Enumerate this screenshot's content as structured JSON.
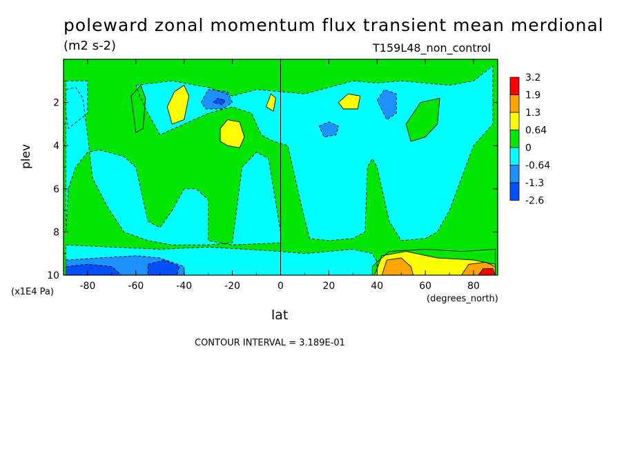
{
  "chart_data": {
    "type": "heatmap",
    "title": "poleward zonal momentum flux transient mean merdional",
    "units": "(m2 s-2)",
    "dataset": "T159L48_non_control",
    "xlabel": "lat",
    "x_units": "(degrees_north)",
    "ylabel": "plev",
    "y_units": "(x1E4 Pa)",
    "xlim": [
      -90,
      90
    ],
    "ylim": [
      10,
      0
    ],
    "x_ticks": [
      -80,
      -60,
      -40,
      -20,
      0,
      20,
      40,
      60,
      80
    ],
    "y_ticks": [
      2,
      4,
      6,
      8,
      10
    ],
    "contour_interval_label": "CONTOUR INTERVAL = 3.189E-01",
    "legend": {
      "placement": "right",
      "levels": [
        "3.2",
        "1.9",
        "1.3",
        "0.64",
        "0",
        "-0.64",
        "-1.3",
        "-2.6"
      ],
      "colors": [
        "#ff0000",
        "#ffa500",
        "#ffff00",
        "#00e600",
        "#00ffff",
        "#1e90ff",
        "#0050ff"
      ]
    },
    "background_color": "#00e600",
    "regions": [
      {
        "name": "left-cyan-column",
        "color": "#00ffff",
        "points": [
          [
            -89,
            1
          ],
          [
            -80,
            1
          ],
          [
            -80,
            2.5
          ],
          [
            -88,
            3.2
          ],
          [
            -89,
            2.5
          ]
        ]
      },
      {
        "name": "cyan-upper-left",
        "color": "#00ffff",
        "points": [
          [
            -89,
            1.4
          ],
          [
            -85,
            1.3
          ],
          [
            -82,
            1.8
          ],
          [
            -80,
            3.5
          ],
          [
            -78,
            5.5
          ],
          [
            -72,
            6.8
          ],
          [
            -65,
            8
          ],
          [
            -55,
            8.4
          ],
          [
            -45,
            8.6
          ],
          [
            -30,
            8.6
          ],
          [
            -20,
            8.5
          ],
          [
            -16,
            5
          ],
          [
            -10,
            4.3
          ],
          [
            -5,
            4.6
          ],
          [
            0,
            8
          ],
          [
            0,
            8.5
          ],
          [
            -20,
            8.6
          ],
          [
            -30,
            8.4
          ],
          [
            -30,
            6.5
          ],
          [
            -35,
            6
          ],
          [
            -40,
            6
          ],
          [
            -45,
            7
          ],
          [
            -50,
            7.8
          ],
          [
            -55,
            7.5
          ],
          [
            -58,
            6
          ],
          [
            -60,
            5
          ],
          [
            -65,
            4.5
          ],
          [
            -75,
            4.2
          ],
          [
            -80,
            4.3
          ],
          [
            -85,
            5
          ],
          [
            -88,
            6
          ],
          [
            -89,
            8
          ]
        ]
      },
      {
        "name": "cyan-top-strip",
        "color": "#00ffff",
        "points": [
          [
            -60,
            1.2
          ],
          [
            -45,
            1
          ],
          [
            -30,
            1.3
          ],
          [
            -20,
            1.7
          ],
          [
            -10,
            1.4
          ],
          [
            0,
            1.5
          ],
          [
            10,
            1.6
          ],
          [
            20,
            1.3
          ],
          [
            30,
            1
          ],
          [
            40,
            1.1
          ],
          [
            50,
            1
          ],
          [
            70,
            1.2
          ],
          [
            80,
            1
          ],
          [
            88,
            0.3
          ],
          [
            88,
            3
          ],
          [
            80,
            4
          ],
          [
            75,
            5.5
          ],
          [
            70,
            7
          ],
          [
            65,
            8
          ],
          [
            60,
            8.3
          ],
          [
            50,
            8.4
          ],
          [
            45,
            7.5
          ],
          [
            40,
            5
          ],
          [
            38,
            4.6
          ],
          [
            36,
            5
          ],
          [
            35,
            8
          ],
          [
            30,
            8.3
          ],
          [
            20,
            8.4
          ],
          [
            12,
            8.3
          ],
          [
            8,
            6.5
          ],
          [
            5,
            5
          ],
          [
            3,
            4
          ],
          [
            -3,
            3.8
          ],
          [
            -8,
            3.5
          ],
          [
            -12,
            2.5
          ],
          [
            -20,
            2.2
          ],
          [
            -30,
            2.5
          ],
          [
            -40,
            3
          ],
          [
            -50,
            3.5
          ],
          [
            -55,
            2.5
          ],
          [
            -58,
            1.8
          ]
        ]
      },
      {
        "name": "cyan-bottom-band",
        "color": "#00ffff",
        "points": [
          [
            -89,
            8.6
          ],
          [
            -70,
            8.7
          ],
          [
            -50,
            8.8
          ],
          [
            -30,
            8.7
          ],
          [
            -15,
            8.8
          ],
          [
            0,
            8.9
          ],
          [
            10,
            9
          ],
          [
            20,
            8.9
          ],
          [
            30,
            8.8
          ],
          [
            38,
            9
          ],
          [
            40,
            9.4
          ],
          [
            40,
            10
          ],
          [
            -89,
            10
          ]
        ]
      },
      {
        "name": "blue-bottom-left",
        "color": "#1e90ff",
        "points": [
          [
            -89,
            9.3
          ],
          [
            -75,
            9.2
          ],
          [
            -60,
            9.1
          ],
          [
            -50,
            9.2
          ],
          [
            -40,
            9.6
          ],
          [
            -40,
            10
          ],
          [
            -89,
            10
          ]
        ]
      },
      {
        "name": "darkblue-bottom-left-1",
        "color": "#0050ff",
        "points": [
          [
            -89,
            9.6
          ],
          [
            -80,
            9.5
          ],
          [
            -70,
            9.6
          ],
          [
            -66,
            10
          ],
          [
            -89,
            10
          ]
        ]
      },
      {
        "name": "darkblue-bottom-left-2",
        "color": "#0050ff",
        "points": [
          [
            -55,
            9.5
          ],
          [
            -48,
            9.3
          ],
          [
            -42,
            9.6
          ],
          [
            -43,
            10
          ],
          [
            -55,
            10
          ]
        ]
      },
      {
        "name": "green-bottom-right",
        "color": "#00e600",
        "points": [
          [
            38,
            9.6
          ],
          [
            45,
            8.9
          ],
          [
            60,
            8.8
          ],
          [
            75,
            8.9
          ],
          [
            89,
            8.8
          ],
          [
            89,
            10
          ],
          [
            38,
            10
          ]
        ]
      },
      {
        "name": "yellow-bottom-right",
        "color": "#ffff00",
        "points": [
          [
            39,
            10
          ],
          [
            42,
            9.1
          ],
          [
            52,
            8.9
          ],
          [
            65,
            9.2
          ],
          [
            80,
            9.3
          ],
          [
            89,
            9.5
          ],
          [
            89,
            10
          ]
        ]
      },
      {
        "name": "orange-bottom-right-1",
        "color": "#ffa500",
        "points": [
          [
            42,
            10
          ],
          [
            44,
            9.3
          ],
          [
            50,
            9.2
          ],
          [
            54,
            9.6
          ],
          [
            55,
            10
          ]
        ]
      },
      {
        "name": "orange-bottom-right-2",
        "color": "#ffa500",
        "points": [
          [
            75,
            10
          ],
          [
            78,
            9.5
          ],
          [
            85,
            9.4
          ],
          [
            89,
            9.6
          ],
          [
            89,
            10
          ]
        ]
      },
      {
        "name": "red-bottom-right",
        "color": "#ff0000",
        "points": [
          [
            82,
            10
          ],
          [
            84,
            9.7
          ],
          [
            88,
            9.7
          ],
          [
            89,
            10
          ]
        ]
      },
      {
        "name": "yellow-upper-left-blob",
        "color": "#ffff00",
        "points": [
          [
            -47,
            2.2
          ],
          [
            -44,
            1.5
          ],
          [
            -40,
            1.2
          ],
          [
            -38,
            1.7
          ],
          [
            -40,
            2.8
          ],
          [
            -45,
            3
          ]
        ]
      },
      {
        "name": "yellow-mid-left-blob",
        "color": "#ffff00",
        "points": [
          [
            -25,
            3.2
          ],
          [
            -22,
            2.8
          ],
          [
            -17,
            2.9
          ],
          [
            -15,
            3.6
          ],
          [
            -17,
            4.1
          ],
          [
            -22,
            4
          ],
          [
            -25,
            3.8
          ]
        ]
      },
      {
        "name": "yellow-small-blob-1",
        "color": "#ffff00",
        "points": [
          [
            -6,
            2.2
          ],
          [
            -4,
            1.6
          ],
          [
            -2,
            1.8
          ],
          [
            -3,
            2.4
          ]
        ]
      },
      {
        "name": "yellow-small-blob-2",
        "color": "#ffff00",
        "points": [
          [
            24,
            2
          ],
          [
            28,
            1.6
          ],
          [
            33,
            1.7
          ],
          [
            32,
            2.3
          ],
          [
            26,
            2.3
          ]
        ]
      },
      {
        "name": "blue-upper-left-blob",
        "color": "#1e90ff",
        "points": [
          [
            -33,
            2
          ],
          [
            -30,
            1.4
          ],
          [
            -22,
            1.5
          ],
          [
            -20,
            2
          ],
          [
            -24,
            2.3
          ],
          [
            -31,
            2.3
          ]
        ]
      },
      {
        "name": "darkblue-upper-left-blob",
        "color": "#0050ff",
        "points": [
          [
            -28,
            2
          ],
          [
            -26,
            1.8
          ],
          [
            -23,
            1.9
          ],
          [
            -24,
            2.1
          ]
        ]
      },
      {
        "name": "blue-right-blob-1",
        "color": "#1e90ff",
        "points": [
          [
            40,
            1.9
          ],
          [
            43,
            1.4
          ],
          [
            48,
            1.6
          ],
          [
            48,
            2.5
          ],
          [
            44,
            2.8
          ]
        ]
      },
      {
        "name": "blue-right-blob-2",
        "color": "#1e90ff",
        "points": [
          [
            16,
            3.1
          ],
          [
            20,
            2.9
          ],
          [
            24,
            3.1
          ],
          [
            23,
            3.5
          ],
          [
            18,
            3.6
          ]
        ]
      },
      {
        "name": "green-mid-left-blob",
        "color": "#00e600",
        "points": [
          [
            -62,
            1.7
          ],
          [
            -58,
            1.2
          ],
          [
            -56,
            1.8
          ],
          [
            -57,
            3.2
          ],
          [
            -60,
            3.4
          ]
        ]
      },
      {
        "name": "green-right-blob",
        "color": "#00e600",
        "points": [
          [
            52,
            3
          ],
          [
            58,
            2
          ],
          [
            66,
            1.8
          ],
          [
            65,
            3
          ],
          [
            60,
            3.6
          ],
          [
            54,
            3.8
          ]
        ]
      }
    ]
  }
}
